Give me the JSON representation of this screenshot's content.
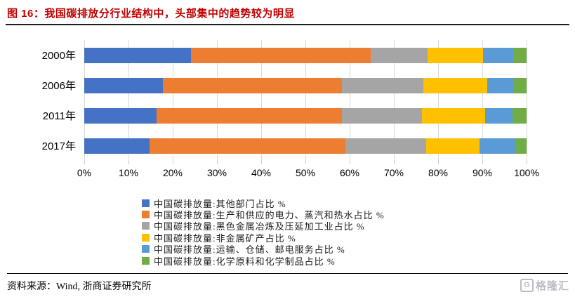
{
  "header": {
    "title": "图 16：我国碳排放分行业结构中，头部集中的趋势较为明显"
  },
  "chart_data": {
    "type": "bar",
    "variant": "horizontal-stacked",
    "title": "我国碳排放分行业结构",
    "categories": [
      "2000年",
      "2006年",
      "2011年",
      "2017年"
    ],
    "series": [
      {
        "name": "中国碳排放量:其他部门占比 %",
        "color": "#4472C4",
        "values": [
          24.2,
          17.8,
          16.4,
          14.7
        ]
      },
      {
        "name": "中国碳排放量:生产和供应的电力、蒸汽和热水占比 %",
        "color": "#ED7D31",
        "values": [
          40.6,
          40.4,
          41.8,
          44.3
        ]
      },
      {
        "name": "中国碳排放量:黑色金属冶炼及压延加工业占比 %",
        "color": "#A5A5A5",
        "values": [
          12.9,
          18.4,
          18.1,
          18.3
        ]
      },
      {
        "name": "中国碳排放量:非金属矿产占比 %",
        "color": "#FFC000",
        "values": [
          12.4,
          14.5,
          14.4,
          12.1
        ]
      },
      {
        "name": "中国碳排放量:运输、仓储、邮电服务占比 %",
        "color": "#5B9BD5",
        "values": [
          7.0,
          6.0,
          6.1,
          8.0
        ]
      },
      {
        "name": "中国碳排放量:化学原料和化学制品占比 %",
        "color": "#70AD47",
        "values": [
          2.9,
          2.9,
          3.2,
          2.6
        ]
      }
    ],
    "x_ticks": [
      "0%",
      "10%",
      "20%",
      "30%",
      "40%",
      "50%",
      "60%",
      "70%",
      "80%",
      "90%",
      "100%"
    ],
    "xlim": [
      0,
      100
    ],
    "grid": true,
    "legend_position": "bottom"
  },
  "footer": {
    "source": "资料来源：Wind, 浙商证券研究所",
    "watermark_text": "格隆汇",
    "watermark_icon_letter": "G"
  },
  "colors": {
    "title_accent": "#C00000",
    "gridline": "#D9D9D9",
    "divider": "#1F1F1F",
    "watermark": "#B9BDC3"
  }
}
